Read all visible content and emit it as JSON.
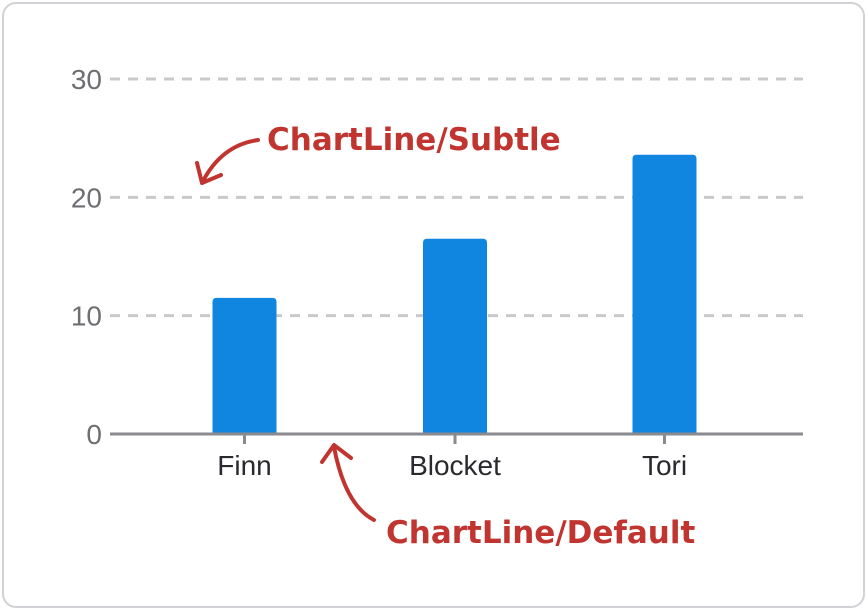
{
  "chart_data": {
    "type": "bar",
    "categories": [
      "Finn",
      "Blocket",
      "Tori"
    ],
    "values": [
      11.5,
      16.5,
      23.6
    ],
    "ylim": [
      0,
      30
    ],
    "yticks": [
      0,
      10,
      20,
      30
    ],
    "grid": true,
    "title": "",
    "xlabel": "",
    "ylabel": "",
    "bar_color": "#1186e0",
    "gridline_color": "#c9c9cc",
    "axis_color": "#8a8a8f"
  },
  "annotations": {
    "subtle": "ChartLine/Subtle",
    "default": "ChartLine/Default",
    "color": "#c0352f"
  }
}
